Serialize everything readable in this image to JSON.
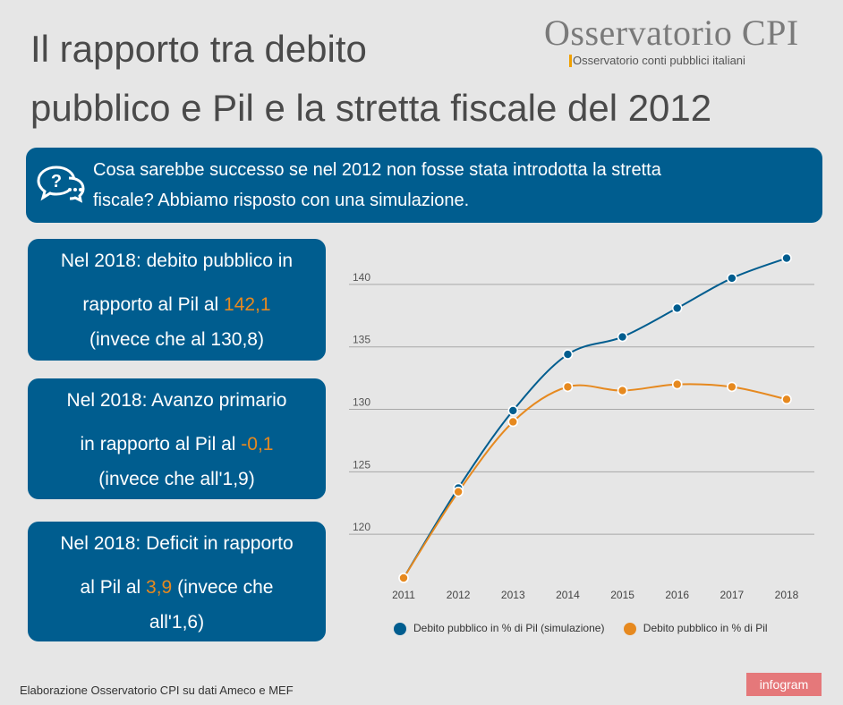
{
  "title": {
    "line1": "Il rapporto tra debito",
    "line2": "pubblico e Pil e la stretta fiscale del 2012"
  },
  "logo": {
    "name": "Osservatorio CPI",
    "subtitle": "Osservatorio conti pubblici italiani"
  },
  "banner": {
    "icon": "speech-bubbles-question-icon",
    "text_line1": "Cosa sarebbe successo se nel 2012 non fosse stata introdotta la stretta",
    "text_line2": "fiscale? Abbiamo risposto con una simulazione."
  },
  "boxes": [
    {
      "line1": "Nel 2018: debito pubblico in",
      "line2_pre": "rapporto al Pil al ",
      "value": "142,1",
      "line2_post": "",
      "line3": "(invece che al 130,8)"
    },
    {
      "line1": "Nel 2018: Avanzo primario",
      "line2_pre": "in rapporto al Pil al ",
      "value": "-0,1",
      "line2_post": "",
      "line3": "(invece che all'1,9)"
    },
    {
      "line1": "Nel 2018: Deficit in rapporto",
      "line2_pre": "al Pil al  ",
      "value": "3,9",
      "line2_post": "  (invece che",
      "line3": "all'1,6)"
    }
  ],
  "colors": {
    "blue": "#005d8f",
    "orange": "#e6891f",
    "background": "#e6e6e6"
  },
  "chart_data": {
    "type": "line",
    "categories": [
      "2011",
      "2012",
      "2013",
      "2014",
      "2015",
      "2016",
      "2017",
      "2018"
    ],
    "series": [
      {
        "name": "Debito pubblico in % di Pil (simulazione)",
        "color": "#005d8f",
        "values": [
          116.5,
          123.7,
          129.9,
          134.4,
          135.8,
          138.1,
          140.5,
          142.1
        ]
      },
      {
        "name": "Debito pubblico in % di Pil",
        "color": "#e6891f",
        "values": [
          116.5,
          123.4,
          129.0,
          131.8,
          131.5,
          132.0,
          131.8,
          130.8
        ]
      }
    ],
    "yticks": [
      120,
      125,
      130,
      135,
      140
    ],
    "ylim": [
      116.5,
      142.5
    ],
    "grid": true,
    "legend": "bottom"
  },
  "footer": {
    "source": "Elaborazione Osservatorio CPI su dati Ameco e MEF",
    "badge": "infogram"
  }
}
